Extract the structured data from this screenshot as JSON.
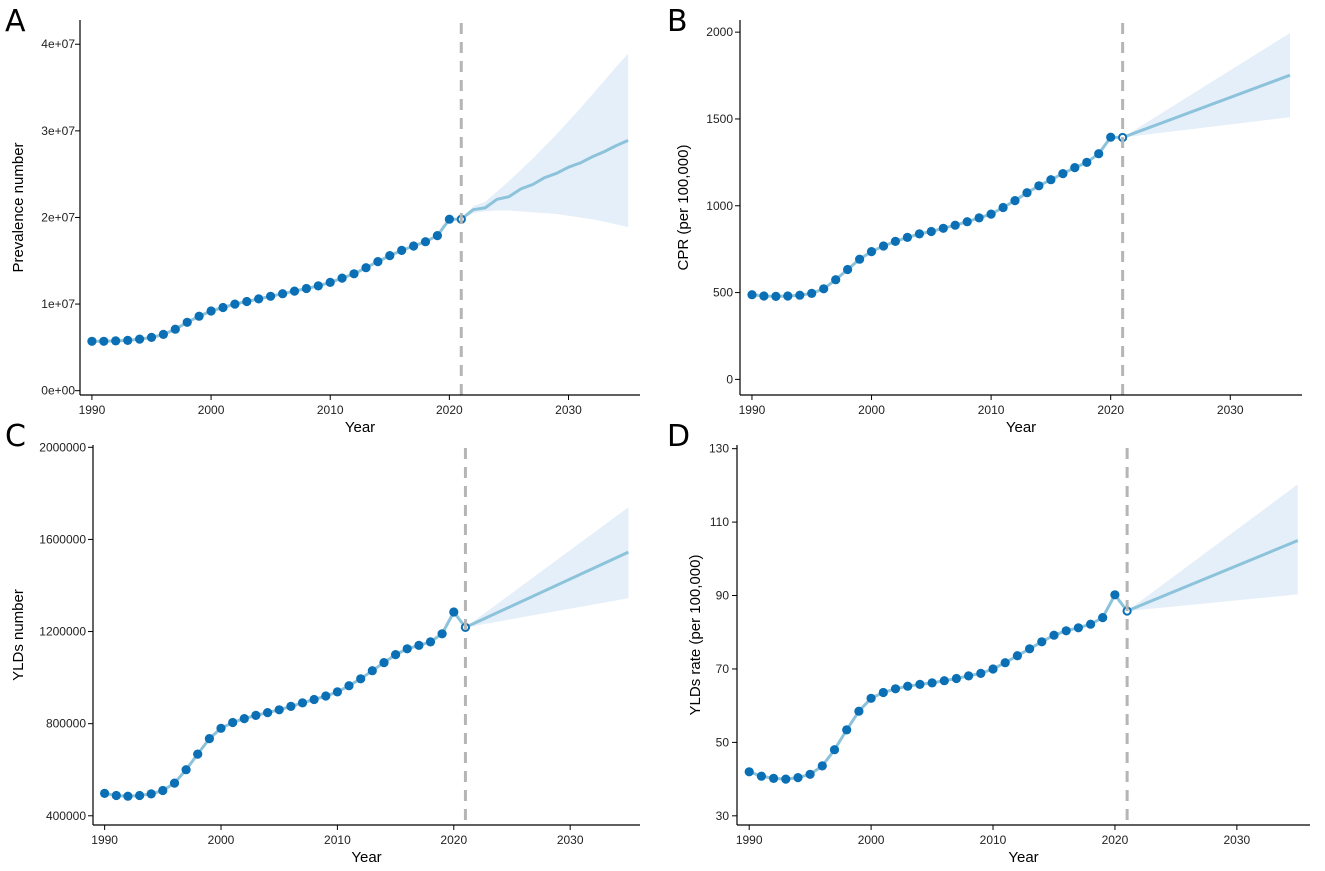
{
  "colors": {
    "observed_point": "#0a6fb5",
    "observed_line": "#8cc3db",
    "forecast_line": "#8cc3db",
    "ci_band": "#e5eff9",
    "cutoff_line": "#b5b5b5"
  },
  "chart_data": [
    {
      "panel": "A",
      "type": "line",
      "xlabel": "Year",
      "ylabel": "Prevalence number",
      "xlim": [
        1989,
        2036
      ],
      "ylim": [
        -500000.0,
        42800000.0
      ],
      "xticks": [
        1990,
        2000,
        2010,
        2020,
        2030
      ],
      "xtick_labels": [
        "1990",
        "2000",
        "2010",
        "2020",
        "2030"
      ],
      "yticks": [
        0,
        10000000,
        20000000,
        30000000,
        40000000
      ],
      "ytick_labels": [
        "0e+00",
        "1e+07",
        "2e+07",
        "3e+07",
        "4e+07"
      ],
      "cutoff_year": 2021,
      "observed": {
        "x": [
          1990,
          1991,
          1992,
          1993,
          1994,
          1995,
          1996,
          1997,
          1998,
          1999,
          2000,
          2001,
          2002,
          2003,
          2004,
          2005,
          2006,
          2007,
          2008,
          2009,
          2010,
          2011,
          2012,
          2013,
          2014,
          2015,
          2016,
          2017,
          2018,
          2019,
          2020,
          2021
        ],
        "y": [
          5700000.0,
          5700000.0,
          5750000.0,
          5800000.0,
          5950000.0,
          6150000.0,
          6500000.0,
          7100000.0,
          7900000.0,
          8600000.0,
          9200000.0,
          9600000.0,
          10000000.0,
          10300000.0,
          10600000.0,
          10900000.0,
          11200000.0,
          11500000.0,
          11800000.0,
          12100000.0,
          12500000.0,
          13000000.0,
          13500000.0,
          14200000.0,
          14900000.0,
          15600000.0,
          16200000.0,
          16700000.0,
          17200000.0,
          17900000.0,
          19800000.0,
          19800000.0
        ]
      },
      "forecast": {
        "x": [
          2021,
          2022,
          2023,
          2024,
          2025,
          2026,
          2027,
          2028,
          2029,
          2030,
          2031,
          2032,
          2033,
          2034,
          2035
        ],
        "y": [
          19800000.0,
          20900000.0,
          21100000.0,
          22100000.0,
          22400000.0,
          23300000.0,
          23800000.0,
          24600000.0,
          25100000.0,
          25800000.0,
          26300000.0,
          27000000.0,
          27600000.0,
          28300000.0,
          28900000.0
        ],
        "lower": [
          19800000.0,
          20500000.0,
          20700000.0,
          20800000.0,
          20800000.0,
          20700000.0,
          20600000.0,
          20500000.0,
          20400000.0,
          20200000.0,
          20000000.0,
          19800000.0,
          19500000.0,
          19200000.0,
          18900000.0
        ],
        "upper": [
          19800000.0,
          21300000.0,
          21800000.0,
          23000000.0,
          24200000.0,
          25500000.0,
          26800000.0,
          28200000.0,
          29600000.0,
          31100000.0,
          32600000.0,
          34200000.0,
          35800000.0,
          37400000.0,
          38900000.0
        ]
      }
    },
    {
      "panel": "B",
      "type": "line",
      "xlabel": "Year",
      "ylabel": "CPR (per 100,000)",
      "xlim": [
        1989,
        2036
      ],
      "ylim": [
        -90,
        2070
      ],
      "xticks": [
        1990,
        2000,
        2010,
        2020,
        2030
      ],
      "xtick_labels": [
        "1990",
        "2000",
        "2010",
        "2020",
        "2030"
      ],
      "yticks": [
        0,
        500,
        1000,
        1500,
        2000
      ],
      "ytick_labels": [
        "0",
        "500",
        "1000",
        "1500",
        "2000"
      ],
      "cutoff_year": 2021,
      "observed": {
        "x": [
          1990,
          1991,
          1992,
          1993,
          1994,
          1995,
          1996,
          1997,
          1998,
          1999,
          2000,
          2001,
          2002,
          2003,
          2004,
          2005,
          2006,
          2007,
          2008,
          2009,
          2010,
          2011,
          2012,
          2013,
          2014,
          2015,
          2016,
          2017,
          2018,
          2019,
          2020,
          2021
        ],
        "y": [
          488,
          480,
          478,
          480,
          485,
          495,
          522,
          574,
          633,
          692,
          736,
          768,
          795,
          818,
          838,
          852,
          870,
          888,
          908,
          930,
          952,
          990,
          1030,
          1075,
          1115,
          1150,
          1185,
          1220,
          1250,
          1300,
          1395,
          1393
        ]
      },
      "forecast": {
        "x": [
          2021,
          2035
        ],
        "y": [
          1393,
          1752
        ],
        "lower": [
          1393,
          1510
        ],
        "upper": [
          1393,
          1995
        ]
      }
    },
    {
      "panel": "C",
      "type": "line",
      "xlabel": "Year",
      "ylabel": "YLDs number",
      "xlim": [
        1989,
        2036
      ],
      "ylim": [
        360000,
        2010000
      ],
      "xticks": [
        1990,
        2000,
        2010,
        2020,
        2030
      ],
      "xtick_labels": [
        "1990",
        "2000",
        "2010",
        "2020",
        "2030"
      ],
      "yticks": [
        400000,
        800000,
        1200000,
        1600000,
        2000000
      ],
      "ytick_labels": [
        "400000",
        "800000",
        "1200000",
        "1600000",
        "2000000"
      ],
      "cutoff_year": 2021,
      "observed": {
        "x": [
          1990,
          1991,
          1992,
          1993,
          1994,
          1995,
          1996,
          1997,
          1998,
          1999,
          2000,
          2001,
          2002,
          2003,
          2004,
          2005,
          2006,
          2007,
          2008,
          2009,
          2010,
          2011,
          2012,
          2013,
          2014,
          2015,
          2016,
          2017,
          2018,
          2019,
          2020,
          2021
        ],
        "y": [
          497000,
          488000,
          485000,
          488000,
          495000,
          510000,
          542000,
          600000,
          668000,
          735000,
          780000,
          805000,
          822000,
          836000,
          848000,
          860000,
          875000,
          890000,
          905000,
          920000,
          938000,
          965000,
          995000,
          1030000,
          1065000,
          1100000,
          1125000,
          1140000,
          1155000,
          1190000,
          1285000,
          1218000
        ]
      },
      "forecast": {
        "x": [
          2021,
          2035
        ],
        "y": [
          1218000,
          1545000
        ],
        "lower": [
          1218000,
          1345000
        ],
        "upper": [
          1218000,
          1740000
        ]
      }
    },
    {
      "panel": "D",
      "type": "line",
      "xlabel": "Year",
      "ylabel": "YLDs rate (per 100,000)",
      "xlim": [
        1989,
        2036
      ],
      "ylim": [
        27.5,
        131
      ],
      "xticks": [
        1990,
        2000,
        2010,
        2020,
        2030
      ],
      "xtick_labels": [
        "1990",
        "2000",
        "2010",
        "2020",
        "2030"
      ],
      "yticks": [
        30,
        50,
        70,
        90,
        110,
        130
      ],
      "ytick_labels": [
        "30",
        "50",
        "70",
        "90",
        "110",
        "130"
      ],
      "cutoff_year": 2021,
      "observed": {
        "x": [
          1990,
          1991,
          1992,
          1993,
          1994,
          1995,
          1996,
          1997,
          1998,
          1999,
          2000,
          2001,
          2002,
          2003,
          2004,
          2005,
          2006,
          2007,
          2008,
          2009,
          2010,
          2011,
          2012,
          2013,
          2014,
          2015,
          2016,
          2017,
          2018,
          2019,
          2020,
          2021
        ],
        "y": [
          42,
          40.8,
          40.2,
          40.0,
          40.4,
          41.3,
          43.6,
          48.0,
          53.4,
          58.5,
          62.0,
          63.6,
          64.6,
          65.3,
          65.8,
          66.2,
          66.8,
          67.4,
          68.1,
          68.8,
          70.0,
          71.7,
          73.6,
          75.5,
          77.4,
          79.2,
          80.4,
          81.2,
          82.2,
          84.0,
          90.2,
          85.8
        ]
      },
      "forecast": {
        "x": [
          2021,
          2035
        ],
        "y": [
          85.8,
          105
        ],
        "lower": [
          85.8,
          90.3
        ],
        "upper": [
          85.8,
          120.3
        ]
      }
    }
  ]
}
